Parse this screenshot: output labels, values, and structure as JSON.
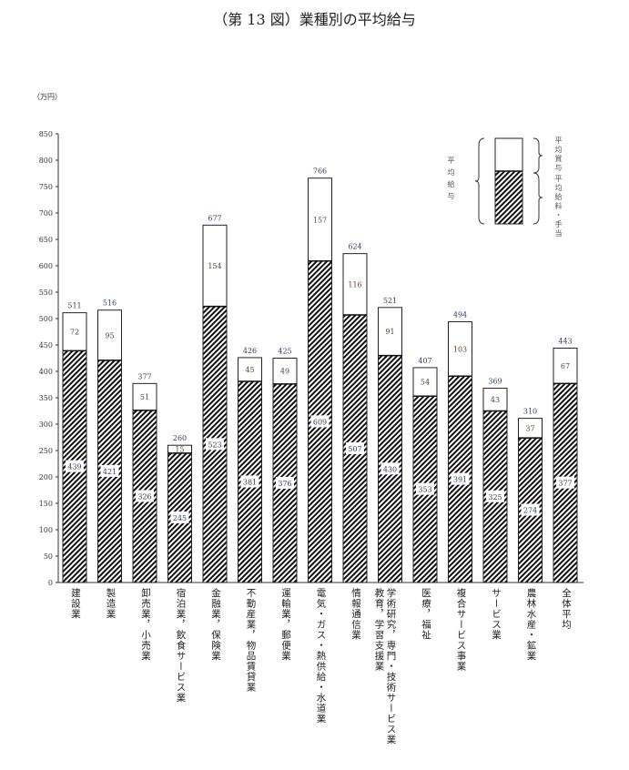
{
  "title": "（第 13 図）業種別の平均給与",
  "chart_data": {
    "type": "bar",
    "stacked": true,
    "title": "（第 13 図）業種別の平均給与",
    "ylabel": "（万円）",
    "ylim": [
      0,
      850
    ],
    "yticks": [
      0,
      50,
      100,
      150,
      200,
      250,
      300,
      350,
      400,
      450,
      500,
      550,
      600,
      650,
      700,
      750,
      800,
      850
    ],
    "categories": [
      [
        "建設業"
      ],
      [
        "製造業"
      ],
      [
        "卸売業，小売業"
      ],
      [
        "宿泊業，飲食サービス業"
      ],
      [
        "金融業，保険業"
      ],
      [
        "不動産業，物品賃貸業"
      ],
      [
        "運輸業，郵便業"
      ],
      [
        "電気・ガス・熱供給・水道業"
      ],
      [
        "情報通信業"
      ],
      [
        "学術研究，専門・技術サービス業",
        "教育，学習支援業"
      ],
      [
        "医療，福祉"
      ],
      [
        "複合サービス事業"
      ],
      [
        "サービス業"
      ],
      [
        "農林水産・鉱業"
      ],
      [
        "全体平均"
      ]
    ],
    "series": [
      {
        "name": "平均給料・手当",
        "values": [
          439,
          421,
          326,
          245,
          523,
          381,
          376,
          609,
          507,
          430,
          353,
          391,
          325,
          274,
          377
        ],
        "fill": "hatched"
      },
      {
        "name": "平均賞与",
        "values": [
          72,
          95,
          51,
          15,
          154,
          45,
          49,
          157,
          116,
          91,
          54,
          103,
          43,
          37,
          67
        ],
        "fill": "#ffffff"
      }
    ],
    "totals": [
      511,
      516,
      377,
      260,
      677,
      426,
      425,
      766,
      624,
      521,
      407,
      494,
      369,
      310,
      443
    ],
    "legend": {
      "placement": "top-right",
      "total_label": "平均給与",
      "bonus_label": "平均賞与",
      "salary_label": "平均給料・手当"
    },
    "grid": false
  }
}
